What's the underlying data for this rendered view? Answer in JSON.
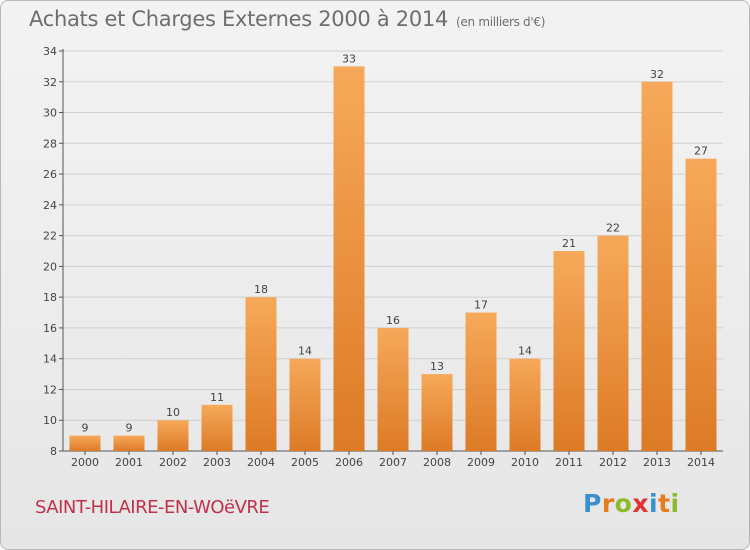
{
  "chart_data": {
    "type": "bar",
    "title": "Achats et Charges Externes 2000 à 2014",
    "unit_label": "(en milliers d'€)",
    "categories": [
      "2000",
      "2001",
      "2002",
      "2003",
      "2004",
      "2005",
      "2006",
      "2007",
      "2008",
      "2009",
      "2010",
      "2011",
      "2012",
      "2013",
      "2014"
    ],
    "values": [
      9,
      9,
      10,
      11,
      18,
      14,
      33,
      16,
      13,
      17,
      14,
      21,
      22,
      32,
      27
    ],
    "ylim": [
      8,
      34
    ],
    "yticks": [
      8,
      10,
      12,
      14,
      16,
      18,
      20,
      22,
      24,
      26,
      28,
      30,
      32,
      34
    ],
    "grid": true,
    "bar_color_light": "#f6a95a",
    "bar_color_dark": "#dd7a26"
  },
  "footer": {
    "commune": "SAINT-HILAIRE-EN-WOëVRE",
    "logo_letters": [
      "P",
      "r",
      "o",
      "x",
      "i",
      "t",
      "i"
    ],
    "logo_colors": [
      "#3a8fd0",
      "#e87b1e",
      "#8cbc2a",
      "#e0332c",
      "#3a8fd0",
      "#e87b1e",
      "#8cbc2a"
    ]
  }
}
